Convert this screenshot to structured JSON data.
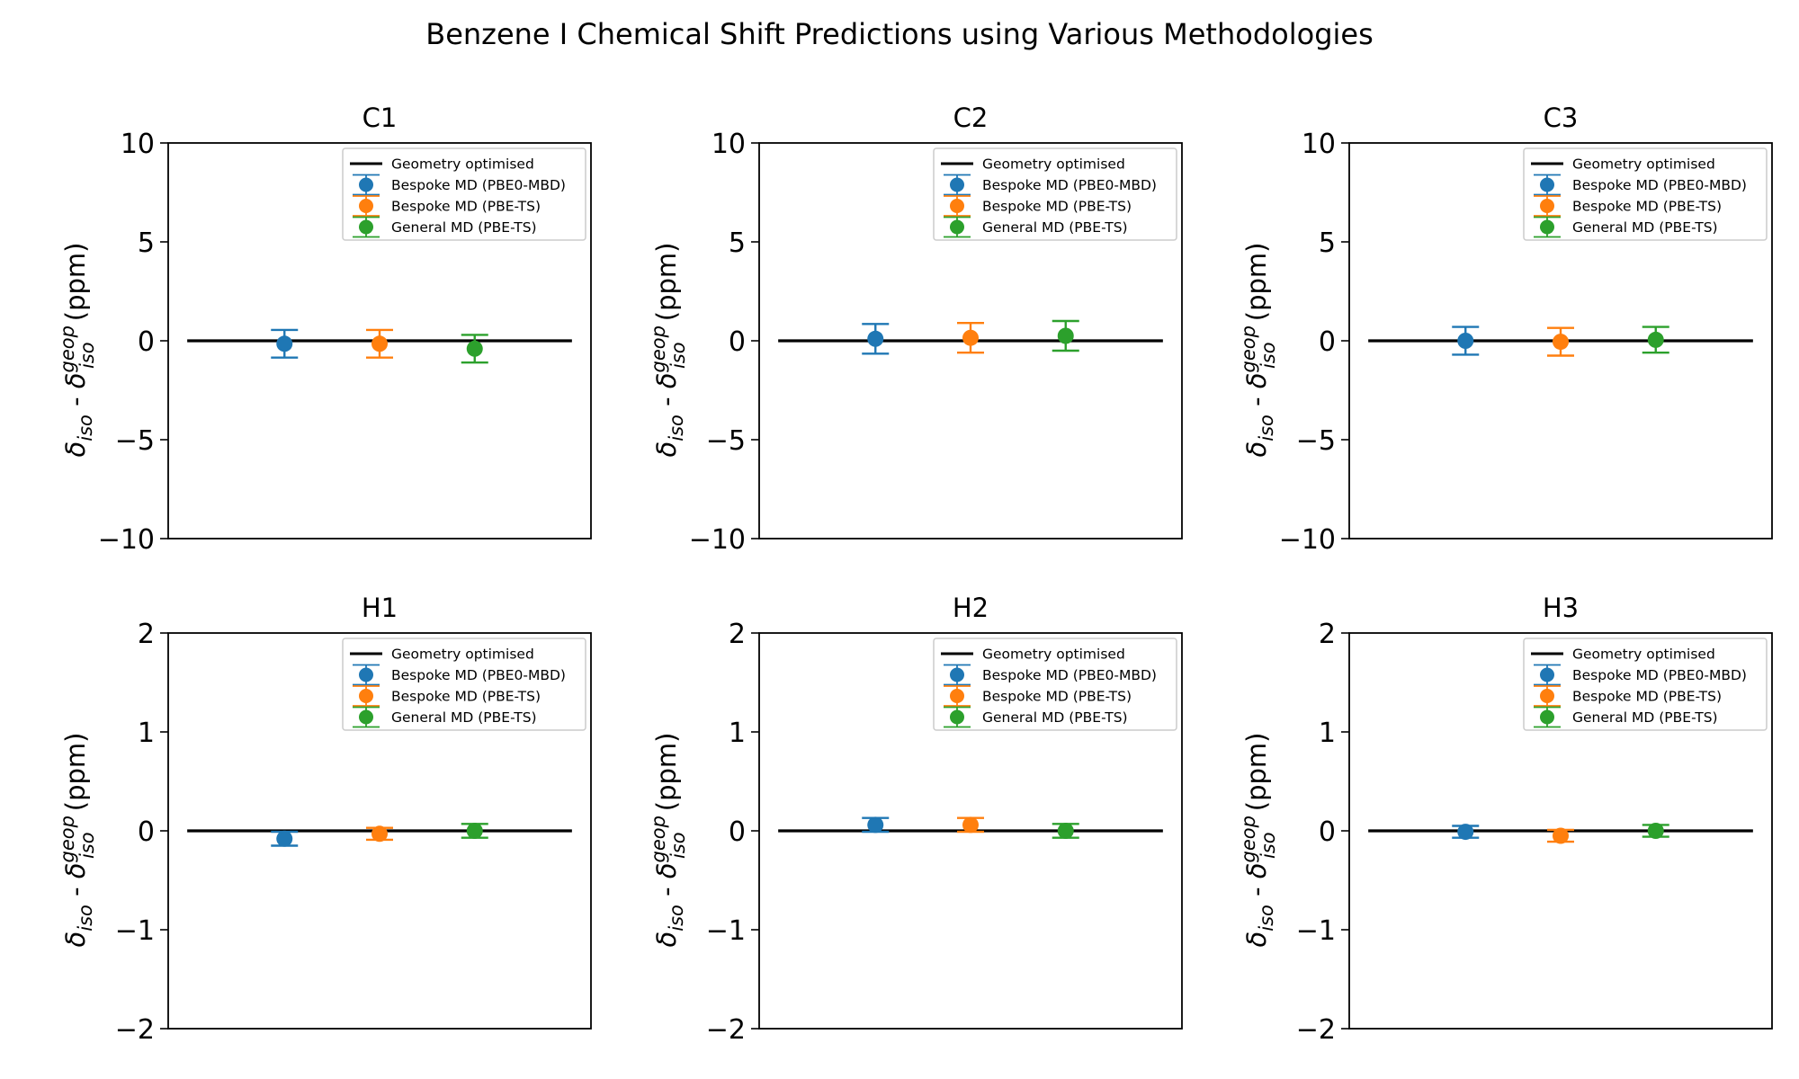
{
  "suptitle": "Benzene I Chemical Shift Predictions using Various Methodologies",
  "chart_data": [
    {
      "type": "errorbar",
      "title": "C1",
      "ylabel": "δiso - δiso^geop (ppm)",
      "ylabel_parts": {
        "delta": "δ",
        "sub1": "iso",
        "sep": " - ",
        "sup2": "geop",
        "sub2": "iso",
        "unit": " (ppm)"
      },
      "ylim": [
        -10,
        10
      ],
      "yticks": [
        10,
        5,
        0,
        -5,
        -10
      ],
      "ytick_labels": [
        "10",
        "5",
        "0",
        "−5",
        "−10"
      ],
      "reference_line": {
        "label": "Geometry optimised",
        "value": 0,
        "color": "#000000"
      },
      "series": [
        {
          "name": "Bespoke MD (PBE0-MBD)",
          "color": "#1f77b4",
          "value": -0.15,
          "error": 0.7
        },
        {
          "name": "Bespoke MD (PBE-TS)",
          "color": "#ff7f0e",
          "value": -0.15,
          "error": 0.7
        },
        {
          "name": "General MD (PBE-TS)",
          "color": "#2ca02c",
          "value": -0.4,
          "error": 0.7
        }
      ]
    },
    {
      "type": "errorbar",
      "title": "C2",
      "ylabel": "δiso - δiso^geop (ppm)",
      "ylabel_parts": {
        "delta": "δ",
        "sub1": "iso",
        "sep": " - ",
        "sup2": "geop",
        "sub2": "iso",
        "unit": " (ppm)"
      },
      "ylim": [
        -10,
        10
      ],
      "yticks": [
        10,
        5,
        0,
        -5,
        -10
      ],
      "ytick_labels": [
        "10",
        "5",
        "0",
        "−5",
        "−10"
      ],
      "reference_line": {
        "label": "Geometry optimised",
        "value": 0,
        "color": "#000000"
      },
      "series": [
        {
          "name": "Bespoke MD (PBE0-MBD)",
          "color": "#1f77b4",
          "value": 0.1,
          "error": 0.75
        },
        {
          "name": "Bespoke MD (PBE-TS)",
          "color": "#ff7f0e",
          "value": 0.15,
          "error": 0.75
        },
        {
          "name": "General MD (PBE-TS)",
          "color": "#2ca02c",
          "value": 0.25,
          "error": 0.75
        }
      ]
    },
    {
      "type": "errorbar",
      "title": "C3",
      "ylabel": "δiso - δiso^geop (ppm)",
      "ylabel_parts": {
        "delta": "δ",
        "sub1": "iso",
        "sep": " - ",
        "sup2": "geop",
        "sub2": "iso",
        "unit": " (ppm)"
      },
      "ylim": [
        -10,
        10
      ],
      "yticks": [
        10,
        5,
        0,
        -5,
        -10
      ],
      "ytick_labels": [
        "10",
        "5",
        "0",
        "−5",
        "−10"
      ],
      "reference_line": {
        "label": "Geometry optimised",
        "value": 0,
        "color": "#000000"
      },
      "series": [
        {
          "name": "Bespoke MD (PBE0-MBD)",
          "color": "#1f77b4",
          "value": 0.0,
          "error": 0.7
        },
        {
          "name": "Bespoke MD (PBE-TS)",
          "color": "#ff7f0e",
          "value": -0.05,
          "error": 0.7
        },
        {
          "name": "General MD (PBE-TS)",
          "color": "#2ca02c",
          "value": 0.05,
          "error": 0.65
        }
      ]
    },
    {
      "type": "errorbar",
      "title": "H1",
      "ylabel": "δiso - δiso^geop (ppm)",
      "ylabel_parts": {
        "delta": "δ",
        "sub1": "iso",
        "sep": " - ",
        "sup2": "geop",
        "sub2": "iso",
        "unit": " (ppm)"
      },
      "ylim": [
        -2,
        2
      ],
      "yticks": [
        2,
        1,
        0,
        -1,
        -2
      ],
      "ytick_labels": [
        "2",
        "1",
        "0",
        "−1",
        "−2"
      ],
      "reference_line": {
        "label": "Geometry optimised",
        "value": 0,
        "color": "#000000"
      },
      "series": [
        {
          "name": "Bespoke MD (PBE0-MBD)",
          "color": "#1f77b4",
          "value": -0.08,
          "error": 0.07
        },
        {
          "name": "Bespoke MD (PBE-TS)",
          "color": "#ff7f0e",
          "value": -0.03,
          "error": 0.06
        },
        {
          "name": "General MD (PBE-TS)",
          "color": "#2ca02c",
          "value": 0.0,
          "error": 0.07
        }
      ]
    },
    {
      "type": "errorbar",
      "title": "H2",
      "ylabel": "δiso - δiso^geop (ppm)",
      "ylabel_parts": {
        "delta": "δ",
        "sub1": "iso",
        "sep": " - ",
        "sup2": "geop",
        "sub2": "iso",
        "unit": " (ppm)"
      },
      "ylim": [
        -2,
        2
      ],
      "yticks": [
        2,
        1,
        0,
        -1,
        -2
      ],
      "ytick_labels": [
        "2",
        "1",
        "0",
        "−1",
        "−2"
      ],
      "reference_line": {
        "label": "Geometry optimised",
        "value": 0,
        "color": "#000000"
      },
      "series": [
        {
          "name": "Bespoke MD (PBE0-MBD)",
          "color": "#1f77b4",
          "value": 0.06,
          "error": 0.07
        },
        {
          "name": "Bespoke MD (PBE-TS)",
          "color": "#ff7f0e",
          "value": 0.06,
          "error": 0.07
        },
        {
          "name": "General MD (PBE-TS)",
          "color": "#2ca02c",
          "value": 0.0,
          "error": 0.07
        }
      ]
    },
    {
      "type": "errorbar",
      "title": "H3",
      "ylabel": "δiso - δiso^geop (ppm)",
      "ylabel_parts": {
        "delta": "δ",
        "sub1": "iso",
        "sep": " - ",
        "sup2": "geop",
        "sub2": "iso",
        "unit": " (ppm)"
      },
      "ylim": [
        -2,
        2
      ],
      "yticks": [
        2,
        1,
        0,
        -1,
        -2
      ],
      "ytick_labels": [
        "2",
        "1",
        "0",
        "−1",
        "−2"
      ],
      "reference_line": {
        "label": "Geometry optimised",
        "value": 0,
        "color": "#000000"
      },
      "series": [
        {
          "name": "Bespoke MD (PBE0-MBD)",
          "color": "#1f77b4",
          "value": -0.01,
          "error": 0.06
        },
        {
          "name": "Bespoke MD (PBE-TS)",
          "color": "#ff7f0e",
          "value": -0.05,
          "error": 0.06
        },
        {
          "name": "General MD (PBE-TS)",
          "color": "#2ca02c",
          "value": 0.0,
          "error": 0.06
        }
      ]
    }
  ]
}
